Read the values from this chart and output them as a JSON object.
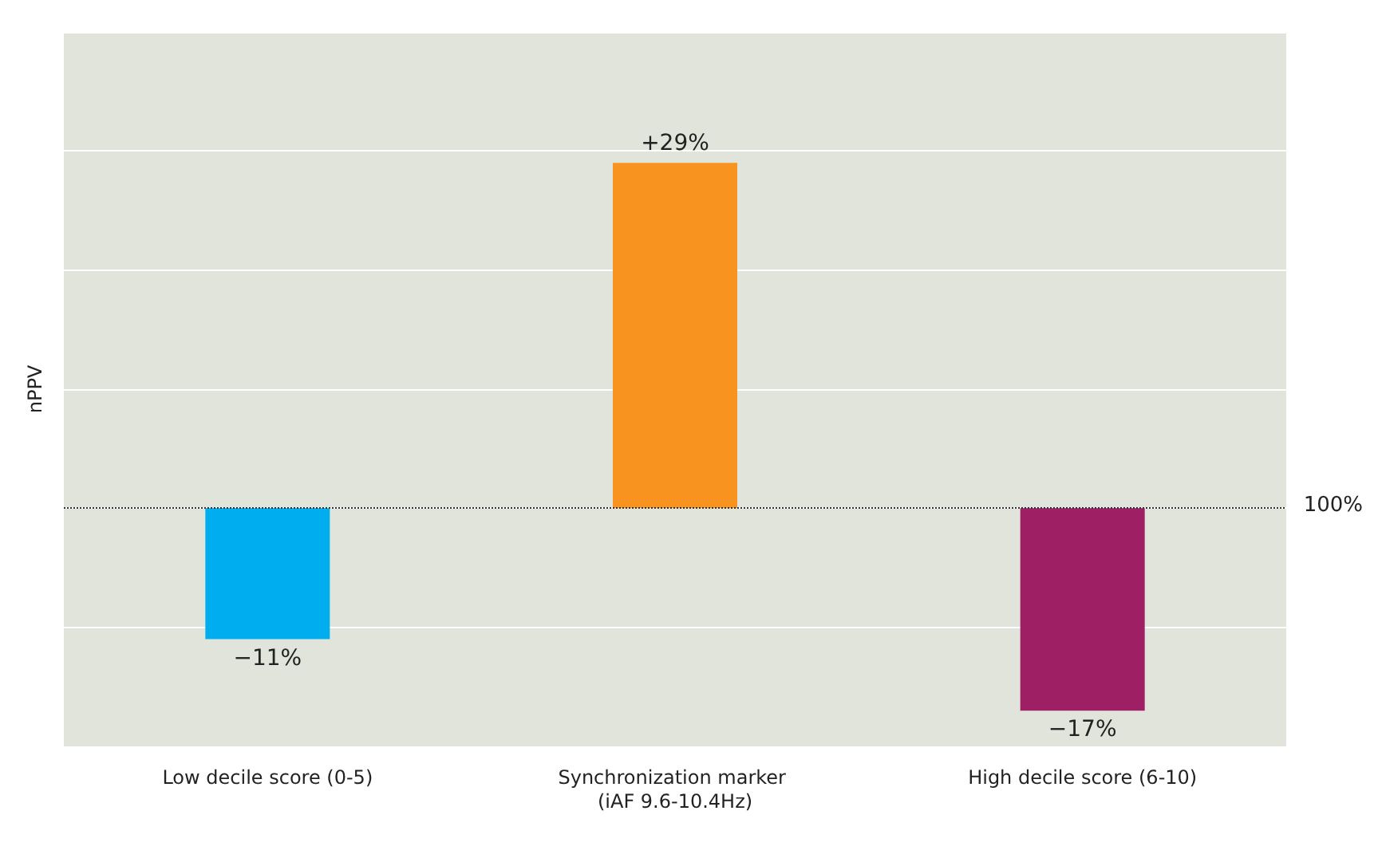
{
  "chart_data": {
    "type": "bar",
    "ylabel": "nPPV",
    "categories": [
      "Low decile score (0-5)",
      "Synchronization marker (iAF 9.6-10.4Hz)",
      "High decile score (6-10)"
    ],
    "values": [
      -11,
      29,
      -17
    ],
    "colors": [
      "#00aeef",
      "#f7931e",
      "#9e1f63"
    ],
    "value_labels": [
      "−11%",
      "+29%",
      "−17%"
    ],
    "ylim": [
      -20,
      40
    ],
    "yticks": [
      {
        "value": -20,
        "label": null
      },
      {
        "value": -10,
        "label": null
      },
      {
        "value": 0,
        "label": null
      },
      {
        "value": 10,
        "label": null
      },
      {
        "value": 20,
        "label": null
      },
      {
        "value": 30,
        "label": null
      },
      {
        "value": 40,
        "label": null
      }
    ],
    "tick_labels": "x",
    "grid": "y",
    "ref_lines": [
      {
        "axis": "y",
        "value": 0,
        "color": "#333333",
        "line_style": "dotted"
      }
    ],
    "annotations": [
      "100%"
    ]
  }
}
